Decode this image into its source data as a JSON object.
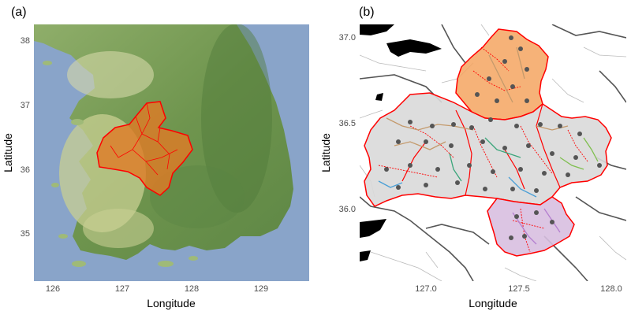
{
  "panels": [
    {
      "tag": "(a)",
      "xlabel": "Longitude",
      "ylabel": "Latitude",
      "xticks": [
        "126",
        "127",
        "128",
        "129"
      ],
      "yticks": [
        "38",
        "37",
        "36",
        "35"
      ],
      "xlim": [
        125.75,
        129.7
      ],
      "ylim": [
        34.25,
        38.25
      ],
      "basemap": "terrain",
      "highlight_color": "#e07b25",
      "boundary_color": "#ff0000"
    },
    {
      "tag": "(b)",
      "xlabel": "Longitude",
      "ylabel": "Latitude",
      "xticks": [
        "127.0",
        "127.5",
        "128.0"
      ],
      "yticks": [
        "37.0",
        "36.5",
        "36.0"
      ],
      "xlim": [
        126.63,
        128.07
      ],
      "ylim": [
        35.6,
        37.1
      ],
      "basemap": "roads",
      "region_colors": {
        "north": "#f4a460",
        "main": "#d9d9d9",
        "southeast": "#d8bfe0"
      },
      "river_colors": [
        "#c49a6c",
        "#3aa57a",
        "#4a9fd6",
        "#b47fd0",
        "#7fbf4f"
      ],
      "point_color": "#555555",
      "boundary_color": "#ff0000"
    }
  ]
}
